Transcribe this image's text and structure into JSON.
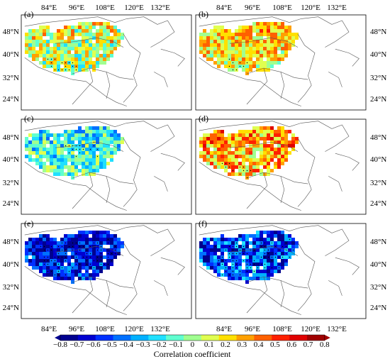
{
  "top_lon_labels": [
    "84°E",
    "96°E",
    "108°E",
    "120°E",
    "132°E"
  ],
  "bottom_lon_labels": [
    "84°E",
    "96°E",
    "108°E",
    "120°E",
    "132°E"
  ],
  "lat_labels": [
    "48°N",
    "40°N",
    "32°N",
    "24°N"
  ],
  "panels": [
    {
      "label": "(a)",
      "mean_r": 0.05,
      "spread": 0.3,
      "stipple": "south"
    },
    {
      "label": "(b)",
      "mean_r": 0.15,
      "spread": 0.25,
      "stipple": "south"
    },
    {
      "label": "(c)",
      "mean_r": -0.1,
      "spread": 0.25,
      "stipple": "center"
    },
    {
      "label": "(d)",
      "mean_r": 0.25,
      "spread": 0.3,
      "stipple": "south"
    },
    {
      "label": "(e)",
      "mean_r": -0.55,
      "spread": 0.25,
      "stipple": "wide"
    },
    {
      "label": "(f)",
      "mean_r": -0.45,
      "spread": 0.3,
      "stipple": "wide"
    }
  ],
  "colorbar": {
    "ticks": [
      "−0.8",
      "−0.7",
      "−0.6",
      "−0.5",
      "−0.4",
      "−0.3",
      "−0.2",
      "−0.1",
      "0",
      "0.1",
      "0.2",
      "0.3",
      "0.4",
      "0.5",
      "0.6",
      "0.7",
      "0.8"
    ],
    "min": -0.8,
    "max": 0.8,
    "title": "Correlation coefficient",
    "colors": [
      "#00008f",
      "#0000d0",
      "#0030ff",
      "#0070ff",
      "#00b0ff",
      "#20e0ff",
      "#60ffd0",
      "#a0ff90",
      "#e0ff50",
      "#ffe000",
      "#ffa000",
      "#ff6000",
      "#ff2000",
      "#e00000",
      "#a00000"
    ]
  }
}
